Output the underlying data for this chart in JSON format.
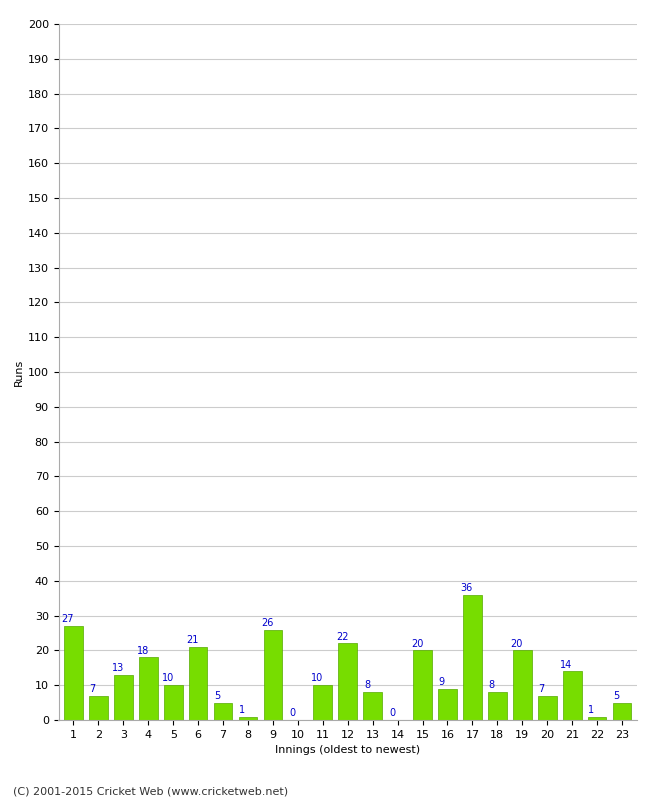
{
  "xlabel": "Innings (oldest to newest)",
  "ylabel": "Runs",
  "categories": [
    1,
    2,
    3,
    4,
    5,
    6,
    7,
    8,
    9,
    10,
    11,
    12,
    13,
    14,
    15,
    16,
    17,
    18,
    19,
    20,
    21,
    22,
    23
  ],
  "values": [
    27,
    7,
    13,
    18,
    10,
    21,
    5,
    1,
    26,
    0,
    10,
    22,
    8,
    0,
    20,
    9,
    36,
    8,
    20,
    7,
    14,
    1,
    5
  ],
  "bar_color": "#77dd00",
  "bar_edge_color": "#55aa00",
  "label_color": "#0000cc",
  "ylim": [
    0,
    200
  ],
  "yticks": [
    0,
    10,
    20,
    30,
    40,
    50,
    60,
    70,
    80,
    90,
    100,
    110,
    120,
    130,
    140,
    150,
    160,
    170,
    180,
    190,
    200
  ],
  "background_color": "#ffffff",
  "grid_color": "#cccccc",
  "footer": "(C) 2001-2015 Cricket Web (www.cricketweb.net)",
  "label_fontsize": 7,
  "tick_fontsize": 8,
  "xlabel_fontsize": 8,
  "ylabel_fontsize": 8,
  "footer_fontsize": 8
}
